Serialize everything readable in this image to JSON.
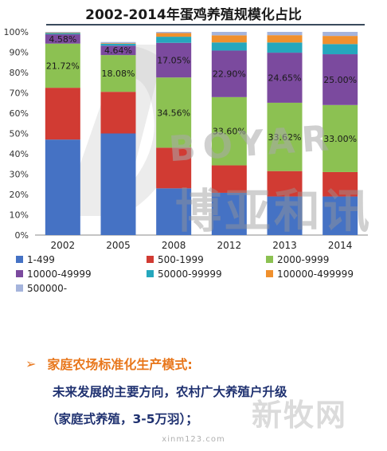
{
  "title": "2002-2014年蛋鸡养殖规模化占比",
  "chart_data": {
    "type": "bar",
    "stacked": true,
    "categories": [
      "2002",
      "2005",
      "2008",
      "2012",
      "2013",
      "2014"
    ],
    "y_ticks": [
      "0%",
      "10%",
      "20%",
      "30%",
      "40%",
      "50%",
      "60%",
      "70%",
      "80%",
      "90%",
      "100%"
    ],
    "ylim": [
      0,
      100
    ],
    "series": [
      {
        "name": "1-499",
        "color": "#4572c4",
        "values": [
          47.0,
          50.0,
          23.0,
          20.8,
          19.0,
          19.0
        ]
      },
      {
        "name": "500-1999",
        "color": "#d13b33",
        "values": [
          25.5,
          20.5,
          20.0,
          13.5,
          12.5,
          12.0
        ]
      },
      {
        "name": "2000-9999",
        "color": "#8cc152",
        "values": [
          21.72,
          18.08,
          34.56,
          33.6,
          33.62,
          33.0
        ]
      },
      {
        "name": "10000-49999",
        "color": "#7b4a9e",
        "values": [
          4.58,
          4.64,
          17.05,
          22.9,
          24.65,
          25.0
        ]
      },
      {
        "name": "50000-99999",
        "color": "#25a7bd",
        "values": [
          0.6,
          0.9,
          3.0,
          4.0,
          5.0,
          5.0
        ]
      },
      {
        "name": "100000-499999",
        "color": "#f0902d",
        "values": [
          0.3,
          0.3,
          1.8,
          3.5,
          3.6,
          4.0
        ]
      },
      {
        "name": "500000-",
        "color": "#a5b4dc",
        "values": [
          0.3,
          0.58,
          0.59,
          1.7,
          1.63,
          2.0
        ]
      }
    ],
    "data_labels": [
      {
        "series": 2,
        "index": 0,
        "text": "21.72%"
      },
      {
        "series": 3,
        "index": 0,
        "text": "4.58%"
      },
      {
        "series": 2,
        "index": 1,
        "text": "18.08%"
      },
      {
        "series": 3,
        "index": 1,
        "text": "4.64%"
      },
      {
        "series": 2,
        "index": 2,
        "text": "34.56%"
      },
      {
        "series": 3,
        "index": 2,
        "text": "17.05%"
      },
      {
        "series": 2,
        "index": 3,
        "text": "33.60%"
      },
      {
        "series": 3,
        "index": 3,
        "text": "22.90%"
      },
      {
        "series": 2,
        "index": 4,
        "text": "33.62%"
      },
      {
        "series": 3,
        "index": 4,
        "text": "24.65%"
      },
      {
        "series": 2,
        "index": 5,
        "text": "33.00%"
      },
      {
        "series": 3,
        "index": 5,
        "text": "25.00%"
      }
    ],
    "legend_position": "bottom",
    "grid": false
  },
  "watermark": {
    "en": "BOYAR",
    "cn": "博亚和讯",
    "site_cn": "新牧网"
  },
  "bullet": {
    "marker": "➢",
    "title": "家庭农场标准化生产模式:",
    "line2": "未来发展的主要方向，农村广大养殖户升级",
    "line3": "（家庭式养殖，3-5万羽）；"
  },
  "footer": "xinm123.com"
}
